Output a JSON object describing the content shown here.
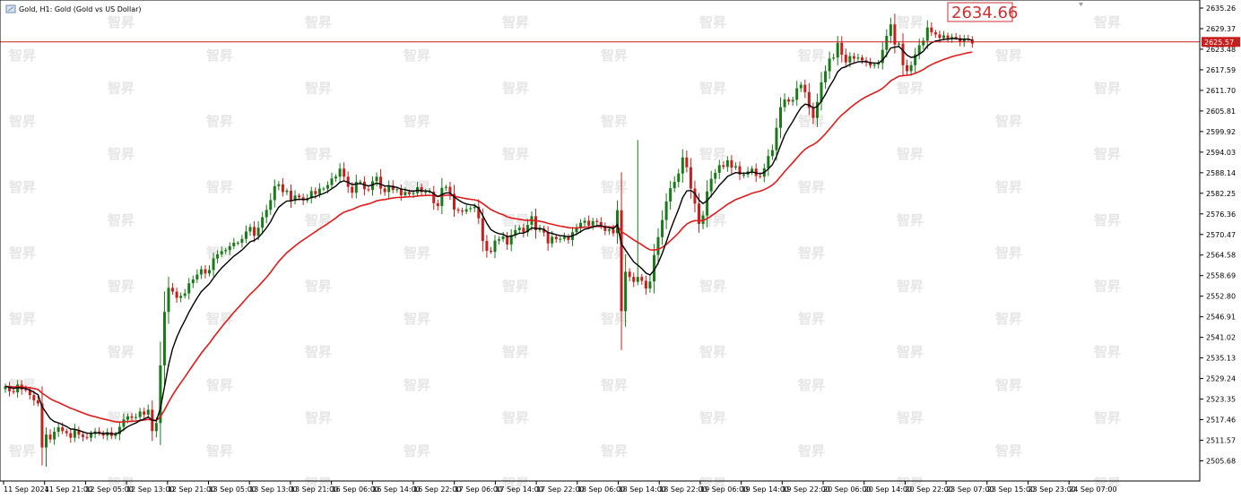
{
  "window": {
    "title": "Gold, H1:  Gold (Gold vs US Dollar)",
    "watermark": "智昇"
  },
  "chart_data": {
    "type": "candlestick",
    "title": "Gold, H1:  Gold (Gold vs US Dollar)",
    "ylim": [
      2501.0,
      2638.0
    ],
    "y_ticks": [
      "2635.26",
      "2629.37",
      "2623.48",
      "2617.59",
      "2611.70",
      "2605.81",
      "2599.92",
      "2594.03",
      "2588.14",
      "2582.25",
      "2576.36",
      "2570.47",
      "2564.58",
      "2558.69",
      "2552.80",
      "2546.91",
      "2541.02",
      "2535.13",
      "2529.24",
      "2523.35",
      "2517.46",
      "2511.57",
      "2505.68"
    ],
    "x_ticks": [
      "11 Sep 2024",
      "11 Sep 21:00",
      "12 Sep 05:00",
      "12 Sep 13:00",
      "12 Sep 21:00",
      "13 Sep 05:00",
      "13 Sep 13:00",
      "13 Sep 21:00",
      "16 Sep 06:00",
      "16 Sep 14:00",
      "16 Sep 22:00",
      "17 Sep 06:00",
      "17 Sep 14:00",
      "17 Sep 22:00",
      "18 Sep 06:00",
      "18 Sep 14:00",
      "18 Sep 22:00",
      "19 Sep 06:00",
      "19 Sep 14:00",
      "19 Sep 22:00",
      "20 Sep 06:00",
      "20 Sep 14:00",
      "20 Sep 22:00",
      "23 Sep 07:00",
      "23 Sep 15:00",
      "23 Sep 23:00",
      "24 Sep 07:00"
    ],
    "current_price_label": "2625.57",
    "annotation": "2634.66",
    "colors": {
      "bull": "#1a7a1a",
      "bear": "#c81e1e",
      "fast_ma": "#000000",
      "slow_ma": "#e01b1b",
      "price_line": "#c81e1e"
    },
    "close": [
      2527.0,
      2525.6,
      2525.3,
      2527.5,
      2526.1,
      2525.9,
      2524.5,
      2523.0,
      2522.1,
      2509.5,
      2513.2,
      2511.8,
      2514.0,
      2515.3,
      2514.2,
      2513.6,
      2512.3,
      2514.5,
      2513.2,
      2512.5,
      2512.3,
      2513.4,
      2514.1,
      2513.6,
      2512.9,
      2513.9,
      2512.8,
      2513.3,
      2515.4,
      2517.5,
      2518.4,
      2518.0,
      2518.2,
      2519.8,
      2518.9,
      2520.3,
      2514.2,
      2516.5,
      2533.0,
      2548.3,
      2555.2,
      2554.1,
      2552.3,
      2552.9,
      2553.6,
      2556.5,
      2557.6,
      2559.0,
      2560.5,
      2559.3,
      2560.3,
      2563.6,
      2564.8,
      2565.7,
      2566.0,
      2567.1,
      2568.1,
      2568.1,
      2569.2,
      2571.3,
      2572.6,
      2570.1,
      2572.4,
      2575.4,
      2577.5,
      2580.3,
      2584.3,
      2584.8,
      2582.6,
      2583.0,
      2580.1,
      2581.6,
      2581.1,
      2580.2,
      2580.8,
      2582.9,
      2582.0,
      2583.6,
      2583.6,
      2584.6,
      2586.5,
      2587.0,
      2589.3,
      2587.0,
      2584.1,
      2582.4,
      2585.5,
      2585.6,
      2583.4,
      2583.2,
      2585.7,
      2587.0,
      2583.6,
      2582.6,
      2584.5,
      2583.2,
      2583.4,
      2581.7,
      2582.6,
      2582.0,
      2582.3,
      2584.0,
      2582.6,
      2582.7,
      2582.7,
      2579.4,
      2578.6,
      2583.8,
      2584.1,
      2582.1,
      2577.6,
      2577.3,
      2577.0,
      2577.7,
      2578.0,
      2578.4,
      2575.1,
      2568.6,
      2565.8,
      2565.5,
      2568.7,
      2569.1,
      2569.9,
      2567.6,
      2570.3,
      2571.7,
      2572.4,
      2571.1,
      2573.2,
      2575.7,
      2571.7,
      2572.1,
      2571.0,
      2567.9,
      2569.8,
      2569.1,
      2569.2,
      2569.8,
      2568.9,
      2571.1,
      2572.2,
      2573.8,
      2574.4,
      2573.0,
      2574.3,
      2574.0,
      2572.9,
      2571.5,
      2571.9,
      2570.8,
      2577.4,
      2548.5,
      2559.8,
      2558.3,
      2556.9,
      2558.3,
      2557.2,
      2555.0,
      2557.0,
      2564.6,
      2569.7,
      2574.6,
      2579.9,
      2583.7,
      2585.5,
      2587.9,
      2592.5,
      2589.7,
      2583.6,
      2579.3,
      2573.5,
      2575.9,
      2582.8,
      2586.4,
      2588.1,
      2590.3,
      2589.8,
      2591.7,
      2589.6,
      2590.0,
      2587.6,
      2587.6,
      2588.5,
      2589.3,
      2587.2,
      2587.0,
      2589.4,
      2592.9,
      2594.6,
      2601.0,
      2606.9,
      2609.1,
      2608.5,
      2609.0,
      2612.3,
      2613.3,
      2611.2,
      2606.7,
      2603.8,
      2608.4,
      2614.0,
      2617.2,
      2620.8,
      2621.1,
      2625.3,
      2621.9,
      2619.7,
      2621.5,
      2620.8,
      2621.1,
      2620.3,
      2619.7,
      2618.8,
      2619.1,
      2619.5,
      2623.3,
      2627.3,
      2630.6,
      2624.8,
      2625.1,
      2618.9,
      2617.2,
      2618.9,
      2622.0,
      2624.6,
      2625.9,
      2629.7,
      2628.3,
      2627.7,
      2626.7,
      2627.4,
      2626.5,
      2627.0,
      2626.7,
      2625.5,
      2626.5,
      2626.3,
      2625.1
    ]
  }
}
